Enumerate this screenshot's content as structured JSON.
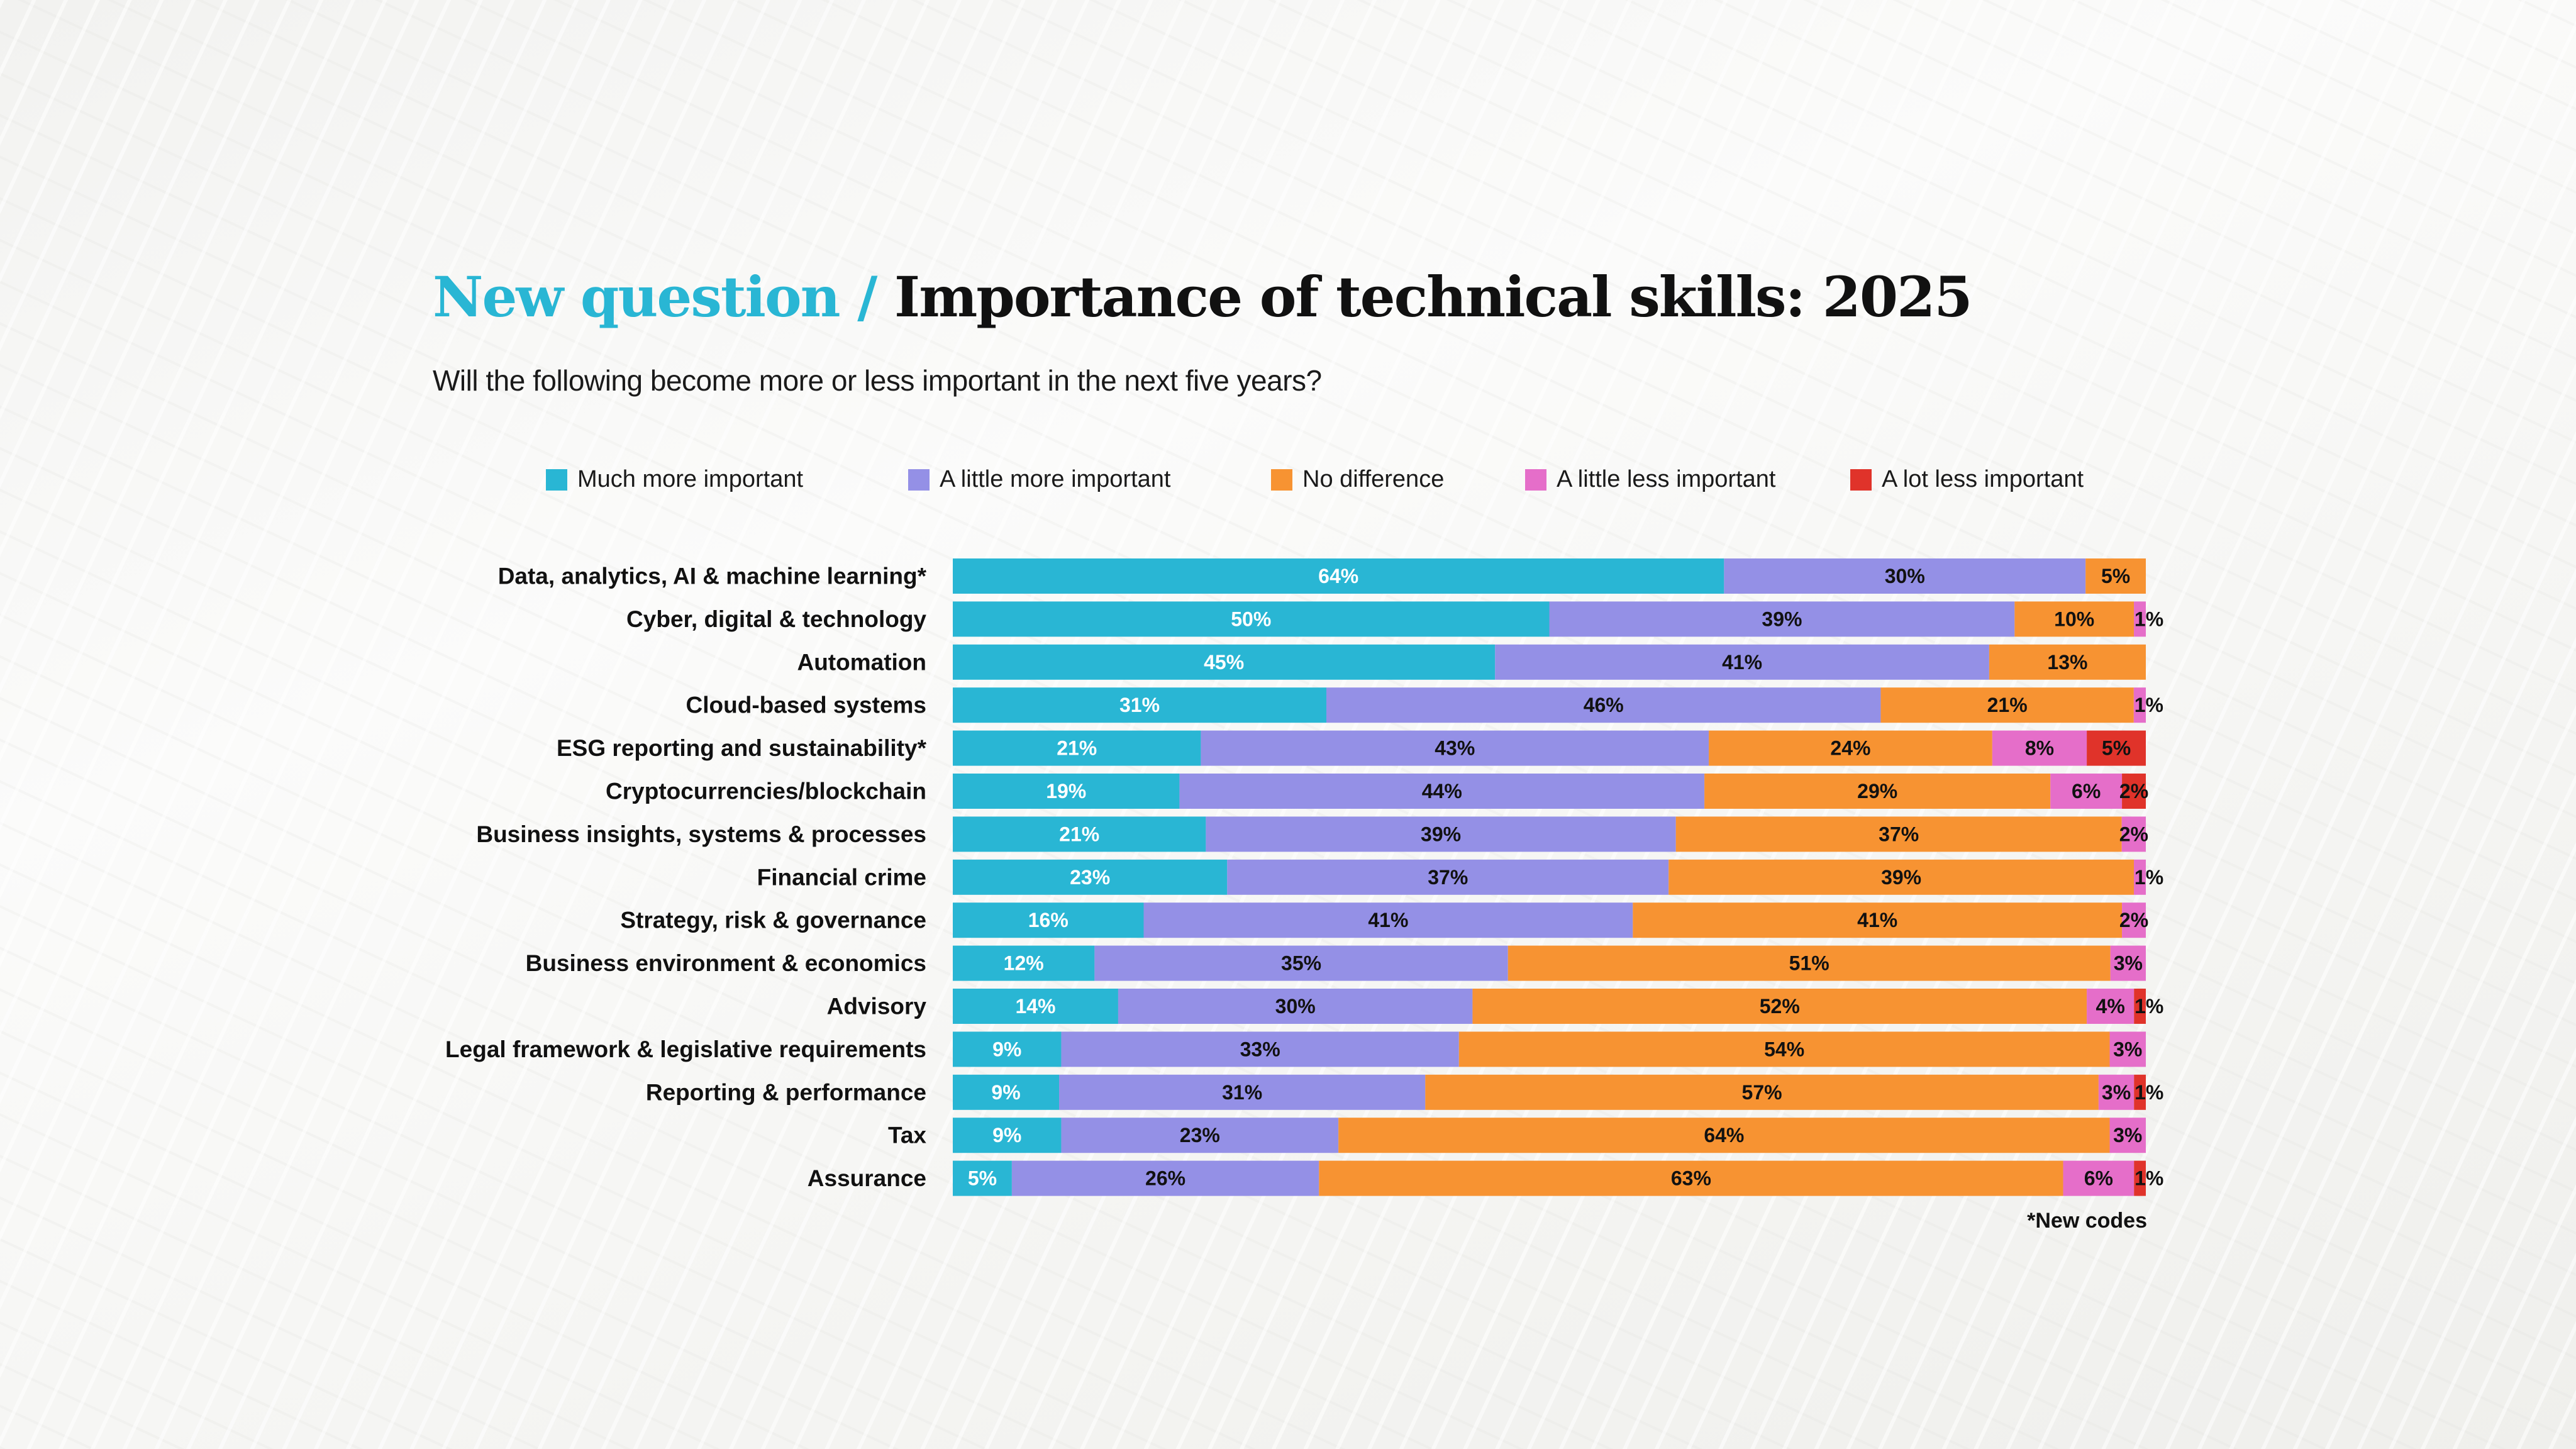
{
  "header": {
    "title_prefix": "New question /",
    "title_main": "Importance of technical skills: 2025",
    "subtitle": "Will the following become more or less important in the next five years?"
  },
  "footnote": "*New codes",
  "chart_data": {
    "type": "bar",
    "orientation": "horizontal",
    "stacked": true,
    "legend_position": "top",
    "grid": false,
    "xlim": [
      0,
      100
    ],
    "categories": [
      "Data, analytics, AI & machine learning*",
      "Cyber, digital & technology",
      "Automation",
      "Cloud-based systems",
      "ESG reporting and sustainability*",
      "Cryptocurrencies/blockchain",
      "Business insights, systems & processes",
      "Financial crime",
      "Strategy, risk & governance",
      "Business environment & economics",
      "Advisory",
      "Legal framework & legislative requirements",
      "Reporting & performance",
      "Tax",
      "Assurance"
    ],
    "series": [
      {
        "name": "Much more important",
        "color": "#29b6d4",
        "label_color": "#ffffff",
        "values": [
          64,
          50,
          45,
          31,
          21,
          19,
          21,
          23,
          16,
          12,
          14,
          9,
          9,
          9,
          5
        ]
      },
      {
        "name": "A little more important",
        "color": "#9490e6",
        "label_color": "#111111",
        "values": [
          30,
          39,
          41,
          46,
          43,
          44,
          39,
          37,
          41,
          35,
          30,
          33,
          31,
          23,
          26
        ]
      },
      {
        "name": "No difference",
        "color": "#f79332",
        "label_color": "#111111",
        "values": [
          5,
          10,
          13,
          21,
          24,
          29,
          37,
          39,
          41,
          51,
          52,
          54,
          57,
          64,
          63
        ]
      },
      {
        "name": "A little less important",
        "color": "#e56ec9",
        "label_color": "#111111",
        "values": [
          0,
          1,
          0,
          1,
          8,
          6,
          2,
          1,
          2,
          3,
          4,
          3,
          3,
          3,
          6
        ]
      },
      {
        "name": "A lot less important",
        "color": "#e0332a",
        "label_color": "#111111",
        "values": [
          0,
          0,
          0,
          0,
          5,
          2,
          0,
          0,
          0,
          0,
          1,
          0,
          1,
          0,
          1
        ]
      }
    ]
  }
}
